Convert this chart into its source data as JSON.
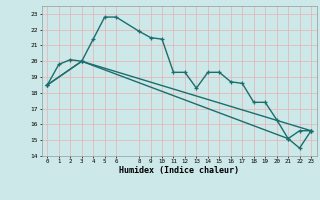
{
  "xlabel": "Humidex (Indice chaleur)",
  "xlim": [
    -0.5,
    23.5
  ],
  "ylim": [
    14,
    23.5
  ],
  "xticks": [
    0,
    1,
    2,
    3,
    4,
    5,
    6,
    8,
    9,
    10,
    11,
    12,
    13,
    14,
    15,
    16,
    17,
    18,
    19,
    20,
    21,
    22,
    23
  ],
  "yticks": [
    14,
    15,
    16,
    17,
    18,
    19,
    20,
    21,
    22,
    23
  ],
  "bg_color": "#cce8e8",
  "grid_major_color": "#f0c0c0",
  "grid_minor_color": "#e8e8e8",
  "line_color": "#1a6e6e",
  "line1_x": [
    0,
    1,
    2,
    3,
    4,
    5,
    6,
    8,
    9,
    10,
    11,
    12,
    13,
    14,
    15,
    16,
    17,
    18,
    19,
    20,
    21,
    22,
    23
  ],
  "line1_y": [
    18.5,
    19.8,
    20.1,
    20.0,
    21.4,
    22.8,
    22.8,
    21.9,
    21.5,
    21.4,
    19.3,
    19.3,
    18.3,
    19.3,
    19.3,
    18.7,
    18.6,
    17.4,
    17.4,
    16.3,
    15.1,
    15.6,
    15.6
  ],
  "line2_x": [
    0,
    3,
    23
  ],
  "line2_y": [
    18.5,
    20.0,
    15.6
  ],
  "line3_x": [
    0,
    3,
    21,
    22,
    23
  ],
  "line3_y": [
    18.5,
    20.0,
    15.1,
    14.5,
    15.6
  ]
}
